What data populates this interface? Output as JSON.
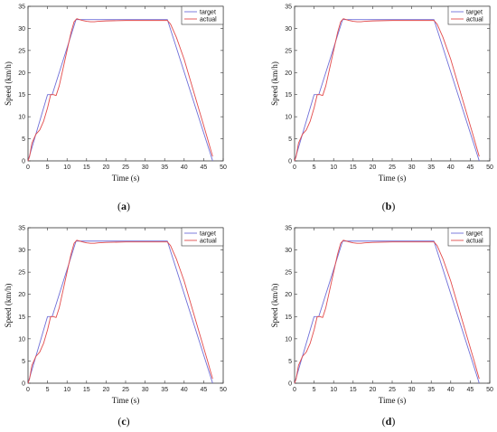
{
  "colors": {
    "target": "#6f6fd8",
    "actual": "#e34a4a",
    "axis": "#333333"
  },
  "chart_data": [
    {
      "type": "line",
      "panel_label": "a",
      "xlabel": "Time (s)",
      "ylabel": "Speed (km/h)",
      "xlim": [
        0,
        50
      ],
      "ylim": [
        0,
        35
      ],
      "xticks": [
        0,
        5,
        10,
        15,
        20,
        25,
        30,
        35,
        40,
        45,
        50
      ],
      "yticks": [
        0,
        5,
        10,
        15,
        20,
        25,
        30,
        35
      ],
      "legend_position": "top-right",
      "series": [
        {
          "name": "target",
          "x": [
            0,
            5,
            6.2,
            12.3,
            35.7,
            47.3
          ],
          "y": [
            0,
            15,
            15,
            32,
            32,
            0
          ]
        },
        {
          "name": "actual",
          "x": [
            0,
            0.4,
            1,
            2,
            3,
            4,
            5,
            5.8,
            6.5,
            7.2,
            8,
            9,
            10,
            11,
            11.8,
            12.5,
            13.2,
            14,
            15,
            16,
            17,
            18,
            20,
            25,
            30,
            35,
            35.7,
            36.5,
            38,
            40,
            42,
            44,
            45,
            46,
            46.8,
            47.3
          ],
          "y": [
            0,
            1,
            4,
            6,
            7,
            9,
            12,
            15,
            15,
            14.8,
            17,
            21,
            25,
            29,
            31.5,
            32.2,
            32,
            31.8,
            31.6,
            31.5,
            31.5,
            31.6,
            31.7,
            31.8,
            31.8,
            31.8,
            31.8,
            31,
            28,
            23,
            17,
            11,
            8,
            5,
            2.5,
            1
          ]
        }
      ]
    },
    {
      "type": "line",
      "panel_label": "b",
      "xlabel": "Time (s)",
      "ylabel": "Speed (km/h)",
      "xlim": [
        0,
        50
      ],
      "ylim": [
        0,
        35
      ],
      "xticks": [
        0,
        5,
        10,
        15,
        20,
        25,
        30,
        35,
        40,
        45,
        50
      ],
      "yticks": [
        0,
        5,
        10,
        15,
        20,
        25,
        30,
        35
      ],
      "legend_position": "top-right",
      "series": [
        {
          "name": "target",
          "x": [
            0,
            5,
            6.2,
            12.3,
            35.7,
            47.3
          ],
          "y": [
            0,
            15,
            15,
            32,
            32,
            0
          ]
        },
        {
          "name": "actual",
          "x": [
            0,
            0.4,
            1,
            2,
            3,
            4,
            5,
            5.8,
            6.5,
            7.2,
            8,
            9,
            10,
            11,
            11.8,
            12.5,
            13.2,
            14,
            15,
            16,
            17,
            18,
            20,
            25,
            30,
            35,
            35.7,
            36.5,
            38,
            40,
            42,
            44,
            45,
            46,
            46.8,
            47.3
          ],
          "y": [
            0,
            1,
            4,
            6,
            7,
            9,
            12,
            15,
            15,
            14.8,
            17,
            21,
            25,
            29,
            31.5,
            32.2,
            32,
            31.8,
            31.6,
            31.5,
            31.5,
            31.6,
            31.7,
            31.8,
            31.8,
            31.8,
            31.8,
            31,
            28,
            23,
            17,
            11,
            8,
            5,
            2.5,
            1
          ]
        }
      ]
    },
    {
      "type": "line",
      "panel_label": "c",
      "xlabel": "Time (s)",
      "ylabel": "Speed (km/h)",
      "xlim": [
        0,
        50
      ],
      "ylim": [
        0,
        35
      ],
      "xticks": [
        0,
        5,
        10,
        15,
        20,
        25,
        30,
        35,
        40,
        45,
        50
      ],
      "yticks": [
        0,
        5,
        10,
        15,
        20,
        25,
        30,
        35
      ],
      "legend_position": "top-right",
      "series": [
        {
          "name": "target",
          "x": [
            0,
            5,
            6.2,
            12.3,
            35.7,
            47.3
          ],
          "y": [
            0,
            15,
            15,
            32,
            32,
            0
          ]
        },
        {
          "name": "actual",
          "x": [
            0,
            0.4,
            1,
            2,
            3,
            4,
            5,
            5.8,
            6.5,
            7.2,
            8,
            9,
            10,
            11,
            11.8,
            12.5,
            13.2,
            14,
            15,
            16,
            17,
            18,
            20,
            25,
            30,
            35,
            35.7,
            36.5,
            38,
            40,
            42,
            44,
            45,
            46,
            46.8,
            47.3
          ],
          "y": [
            0,
            1,
            4,
            6,
            7,
            9,
            12,
            15,
            15,
            14.8,
            17,
            21,
            25,
            29,
            31.5,
            32.2,
            32,
            31.8,
            31.6,
            31.5,
            31.5,
            31.6,
            31.7,
            31.8,
            31.8,
            31.8,
            31.8,
            31,
            28,
            23,
            17,
            11,
            8,
            5,
            2.5,
            1
          ]
        }
      ]
    },
    {
      "type": "line",
      "panel_label": "d",
      "xlabel": "Time (s)",
      "ylabel": "Speed (km/h)",
      "xlim": [
        0,
        50
      ],
      "ylim": [
        0,
        35
      ],
      "xticks": [
        0,
        5,
        10,
        15,
        20,
        25,
        30,
        35,
        40,
        45,
        50
      ],
      "yticks": [
        0,
        5,
        10,
        15,
        20,
        25,
        30,
        35
      ],
      "legend_position": "top-right",
      "series": [
        {
          "name": "target",
          "x": [
            0,
            5,
            6.2,
            12.3,
            35.7,
            47.3
          ],
          "y": [
            0,
            15,
            15,
            32,
            32,
            0
          ]
        },
        {
          "name": "actual",
          "x": [
            0,
            0.4,
            1,
            2,
            3,
            4,
            5,
            5.8,
            6.5,
            7.2,
            8,
            9,
            10,
            11,
            11.8,
            12.5,
            13.2,
            14,
            15,
            16,
            17,
            18,
            20,
            25,
            30,
            35,
            35.7,
            36.5,
            38,
            40,
            42,
            44,
            45,
            46,
            46.8,
            47.3
          ],
          "y": [
            0,
            1,
            4,
            6,
            7,
            9,
            12,
            15,
            15,
            14.8,
            17,
            21,
            25,
            29,
            31.5,
            32.2,
            32,
            31.8,
            31.6,
            31.5,
            31.5,
            31.6,
            31.7,
            31.8,
            31.8,
            31.8,
            31.8,
            31,
            28,
            23,
            17,
            11,
            8,
            5,
            2.5,
            1
          ]
        }
      ]
    }
  ]
}
